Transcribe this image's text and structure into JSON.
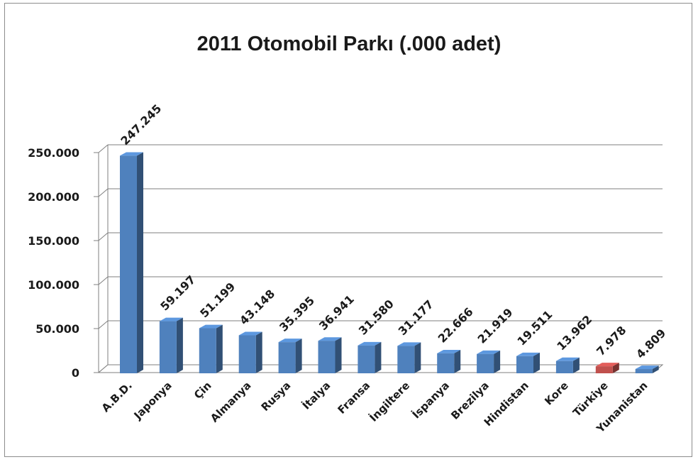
{
  "chart_data": {
    "type": "bar",
    "title": "2011 Otomobil Parkı (.000 adet)",
    "categories": [
      "A.B.D.",
      "Japonya",
      "Çin",
      "Almanya",
      "Rusya",
      "İtalya",
      "Fransa",
      "İngiltere",
      "İspanya",
      "Brezilya",
      "Hindistan",
      "Kore",
      "Türkiye",
      "Yunanistan"
    ],
    "values": [
      247245,
      59197,
      51199,
      43148,
      35395,
      36941,
      31580,
      31177,
      22666,
      21919,
      19511,
      13962,
      7978,
      4809
    ],
    "data_labels": [
      "247.245",
      "59.197",
      "51.199",
      "43.148",
      "35.395",
      "36.941",
      "31.580",
      "31.177",
      "22.666",
      "21.919",
      "19.511",
      "13.962",
      "7.978",
      "4.809"
    ],
    "yticks": [
      "0",
      "50.000",
      "100.000",
      "150.000",
      "200.000",
      "250.000"
    ],
    "ylim": [
      0,
      250000
    ],
    "grid": true,
    "legend": "none",
    "bar_color": "#4f81bd",
    "highlight_category": "Türkiye",
    "highlight_color": "#c0504d"
  }
}
